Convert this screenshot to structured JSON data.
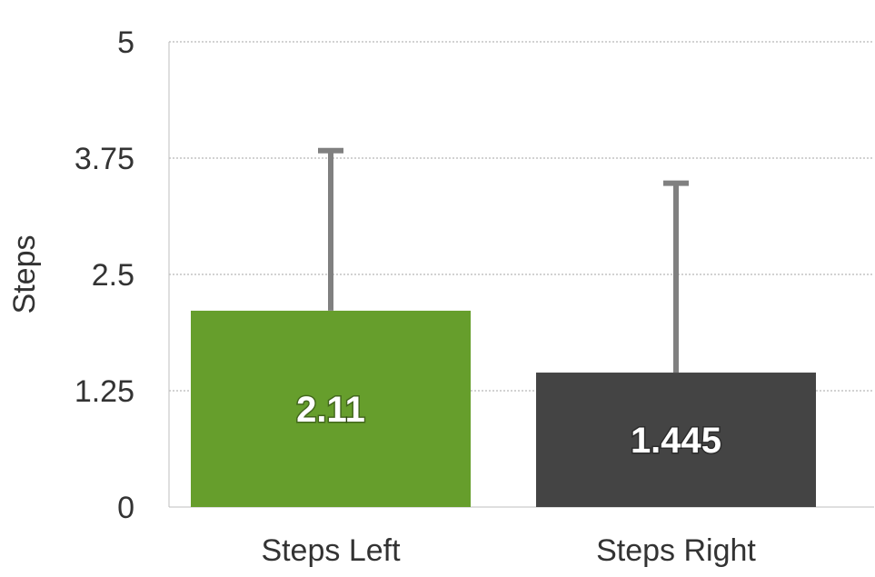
{
  "chart_data": {
    "type": "bar",
    "title": "",
    "xlabel": "",
    "ylabel": "Steps",
    "categories": [
      "Steps Left",
      "Steps Right"
    ],
    "values": [
      2.11,
      1.445
    ],
    "value_labels": [
      "2.11",
      "1.445"
    ],
    "error_upper": [
      3.83,
      3.48
    ],
    "ylim": [
      0,
      5
    ],
    "yticks": [
      0,
      1.25,
      2.5,
      3.75,
      5
    ],
    "ytick_labels": [
      "0",
      "1.25",
      "2.5",
      "3.75",
      "5"
    ],
    "grid": true,
    "legend": "none",
    "colors": [
      "#669e2c",
      "#444444"
    ],
    "error_bar_color": "#808080",
    "grid_color": "#a6a6a6"
  }
}
